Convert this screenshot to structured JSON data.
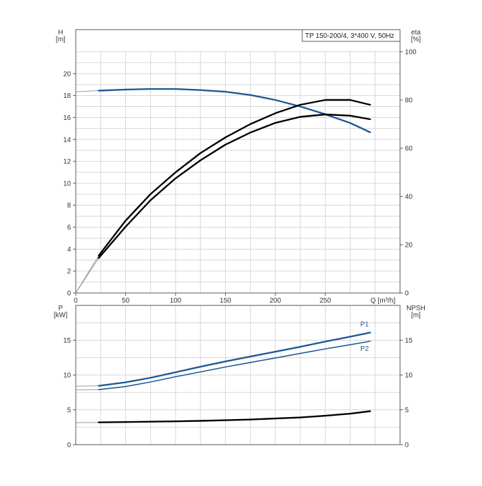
{
  "chart_data": [
    {
      "type": "line",
      "title": "TP 150-200/4, 3*400 V, 50Hz",
      "xlabel": "Q [m³/h]",
      "ylabel_left": "H\n[m]",
      "ylabel_right": "eta\n[%]",
      "xlim": [
        0,
        325
      ],
      "ylim_left": [
        0,
        22
      ],
      "ylim_right": [
        0,
        100
      ],
      "x_ticks": [
        0,
        50,
        100,
        150,
        200,
        250
      ],
      "y_ticks_left": [
        0,
        2,
        4,
        6,
        8,
        10,
        12,
        14,
        16,
        18,
        20
      ],
      "y_ticks_right": [
        0,
        20,
        40,
        60,
        80,
        100
      ],
      "grid": true,
      "series": [
        {
          "axis": "left",
          "color": "#1f5a96",
          "values": [
            [
              0,
              18.35
            ],
            [
              23,
              18.45
            ],
            [
              50,
              18.55
            ],
            [
              75,
              18.6
            ],
            [
              100,
              18.6
            ],
            [
              125,
              18.5
            ],
            [
              150,
              18.35
            ],
            [
              175,
              18.05
            ],
            [
              200,
              17.6
            ],
            [
              225,
              17.0
            ],
            [
              250,
              16.3
            ],
            [
              275,
              15.5
            ],
            [
              295,
              14.65
            ]
          ],
          "extension_to": 23
        },
        {
          "axis": "right",
          "color": "#000000",
          "values": [
            [
              0,
              0
            ],
            [
              23,
              14.5
            ],
            [
              50,
              27.5
            ],
            [
              75,
              38.5
            ],
            [
              100,
              47.5
            ],
            [
              125,
              55
            ],
            [
              150,
              61.5
            ],
            [
              175,
              66.5
            ],
            [
              200,
              70.5
            ],
            [
              225,
              73
            ],
            [
              250,
              74
            ],
            [
              275,
              73.5
            ],
            [
              295,
              72
            ]
          ],
          "extension_to": 23
        },
        {
          "axis": "right",
          "color": "#000000",
          "values": [
            [
              0,
              0
            ],
            [
              23,
              15.5
            ],
            [
              50,
              30
            ],
            [
              75,
              41
            ],
            [
              100,
              50
            ],
            [
              125,
              58
            ],
            [
              150,
              64.5
            ],
            [
              175,
              70
            ],
            [
              200,
              74.5
            ],
            [
              225,
              78
            ],
            [
              250,
              80
            ],
            [
              275,
              80
            ],
            [
              295,
              78
            ]
          ],
          "extension_to": 23
        }
      ]
    },
    {
      "type": "line",
      "title": "",
      "xlabel": "",
      "ylabel_left": "P\n[kW]",
      "ylabel_right": "NPSH\n[m]",
      "xlim": [
        0,
        325
      ],
      "ylim_left": [
        0,
        20
      ],
      "ylim_right": [
        0,
        20
      ],
      "y_ticks_left": [
        0,
        5,
        10,
        15
      ],
      "y_ticks_right": [
        0,
        5,
        10,
        15
      ],
      "grid": true,
      "series": [
        {
          "name": "P1",
          "axis": "left",
          "color": "#1f5a96",
          "values": [
            [
              0,
              8.4
            ],
            [
              23,
              8.45
            ],
            [
              50,
              8.95
            ],
            [
              75,
              9.6
            ],
            [
              100,
              10.4
            ],
            [
              125,
              11.2
            ],
            [
              150,
              11.95
            ],
            [
              175,
              12.65
            ],
            [
              200,
              13.35
            ],
            [
              225,
              14.05
            ],
            [
              250,
              14.8
            ],
            [
              275,
              15.5
            ],
            [
              295,
              16.1
            ]
          ],
          "extension_to": 23
        },
        {
          "name": "P2",
          "axis": "left",
          "color": "#1f5a96",
          "values": [
            [
              0,
              7.85
            ],
            [
              23,
              7.9
            ],
            [
              50,
              8.35
            ],
            [
              75,
              9.0
            ],
            [
              100,
              9.75
            ],
            [
              125,
              10.45
            ],
            [
              150,
              11.15
            ],
            [
              175,
              11.8
            ],
            [
              200,
              12.45
            ],
            [
              225,
              13.1
            ],
            [
              250,
              13.75
            ],
            [
              275,
              14.35
            ],
            [
              295,
              14.85
            ]
          ],
          "extension_to": 23
        },
        {
          "axis": "right",
          "color": "#000000",
          "values": [
            [
              0,
              3.15
            ],
            [
              23,
              3.2
            ],
            [
              50,
              3.25
            ],
            [
              75,
              3.3
            ],
            [
              100,
              3.35
            ],
            [
              125,
              3.42
            ],
            [
              150,
              3.5
            ],
            [
              175,
              3.6
            ],
            [
              200,
              3.75
            ],
            [
              225,
              3.9
            ],
            [
              250,
              4.15
            ],
            [
              275,
              4.45
            ],
            [
              295,
              4.8
            ]
          ],
          "extension_to": 23
        }
      ]
    }
  ]
}
